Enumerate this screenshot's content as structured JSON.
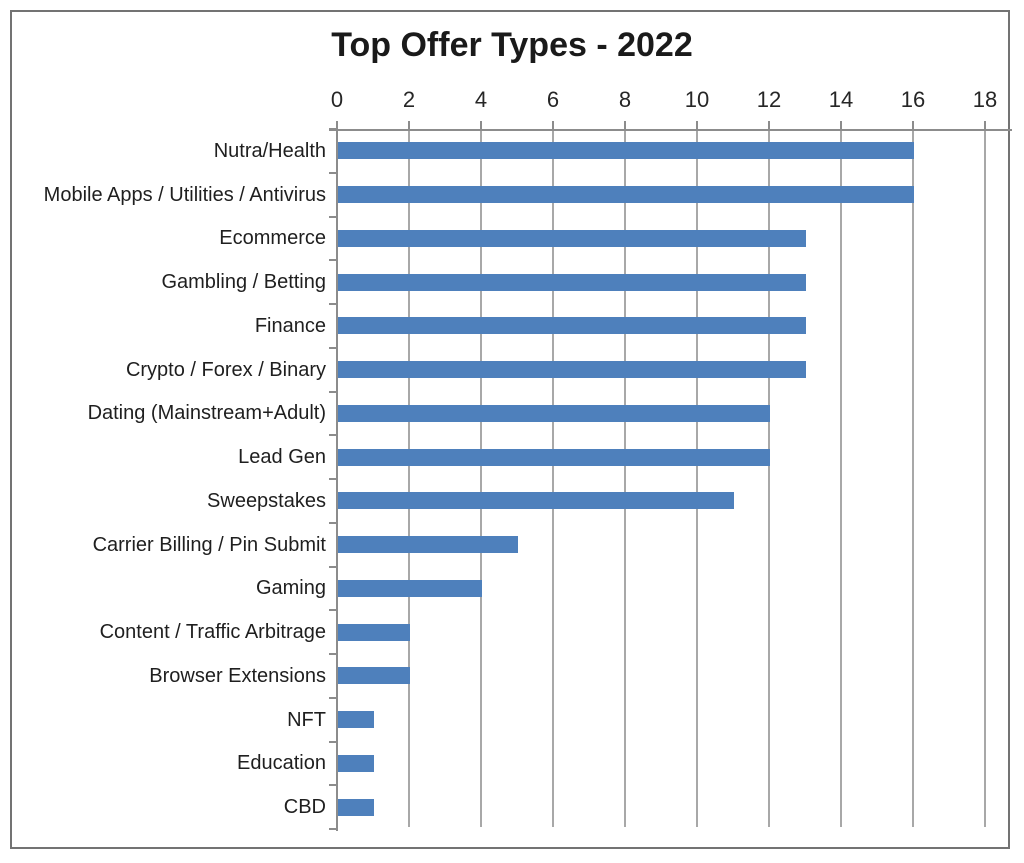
{
  "chart_data": {
    "type": "bar",
    "orientation": "horizontal",
    "title": "Top Offer Types - 2022",
    "categories": [
      "Nutra/Health",
      "Mobile Apps / Utilities / Antivirus",
      "Ecommerce",
      "Gambling / Betting",
      "Finance",
      "Crypto / Forex / Binary",
      "Dating (Mainstream+Adult)",
      "Lead Gen",
      "Sweepstakes",
      "Carrier Billing / Pin Submit",
      "Gaming",
      "Content / Traffic Arbitrage",
      "Browser Extensions",
      "NFT",
      "Education",
      "CBD"
    ],
    "values": [
      16,
      16,
      13,
      13,
      13,
      13,
      12,
      12,
      11,
      5,
      4,
      2,
      2,
      1,
      1,
      1
    ],
    "xlabel": "",
    "ylabel": "",
    "xlim": [
      0,
      18
    ],
    "xticks": [
      0,
      2,
      4,
      6,
      8,
      10,
      12,
      14,
      16,
      18
    ],
    "x_axis_position": "top",
    "grid": "vertical-only",
    "legend": "none",
    "colors": {
      "bar": "#4e80bc",
      "gridline": "#a8a8a8",
      "axis": "#8c8c8c",
      "frame_border": "#737373",
      "title_text": "#1a1a1a",
      "label_text": "#1f1f1f"
    }
  }
}
